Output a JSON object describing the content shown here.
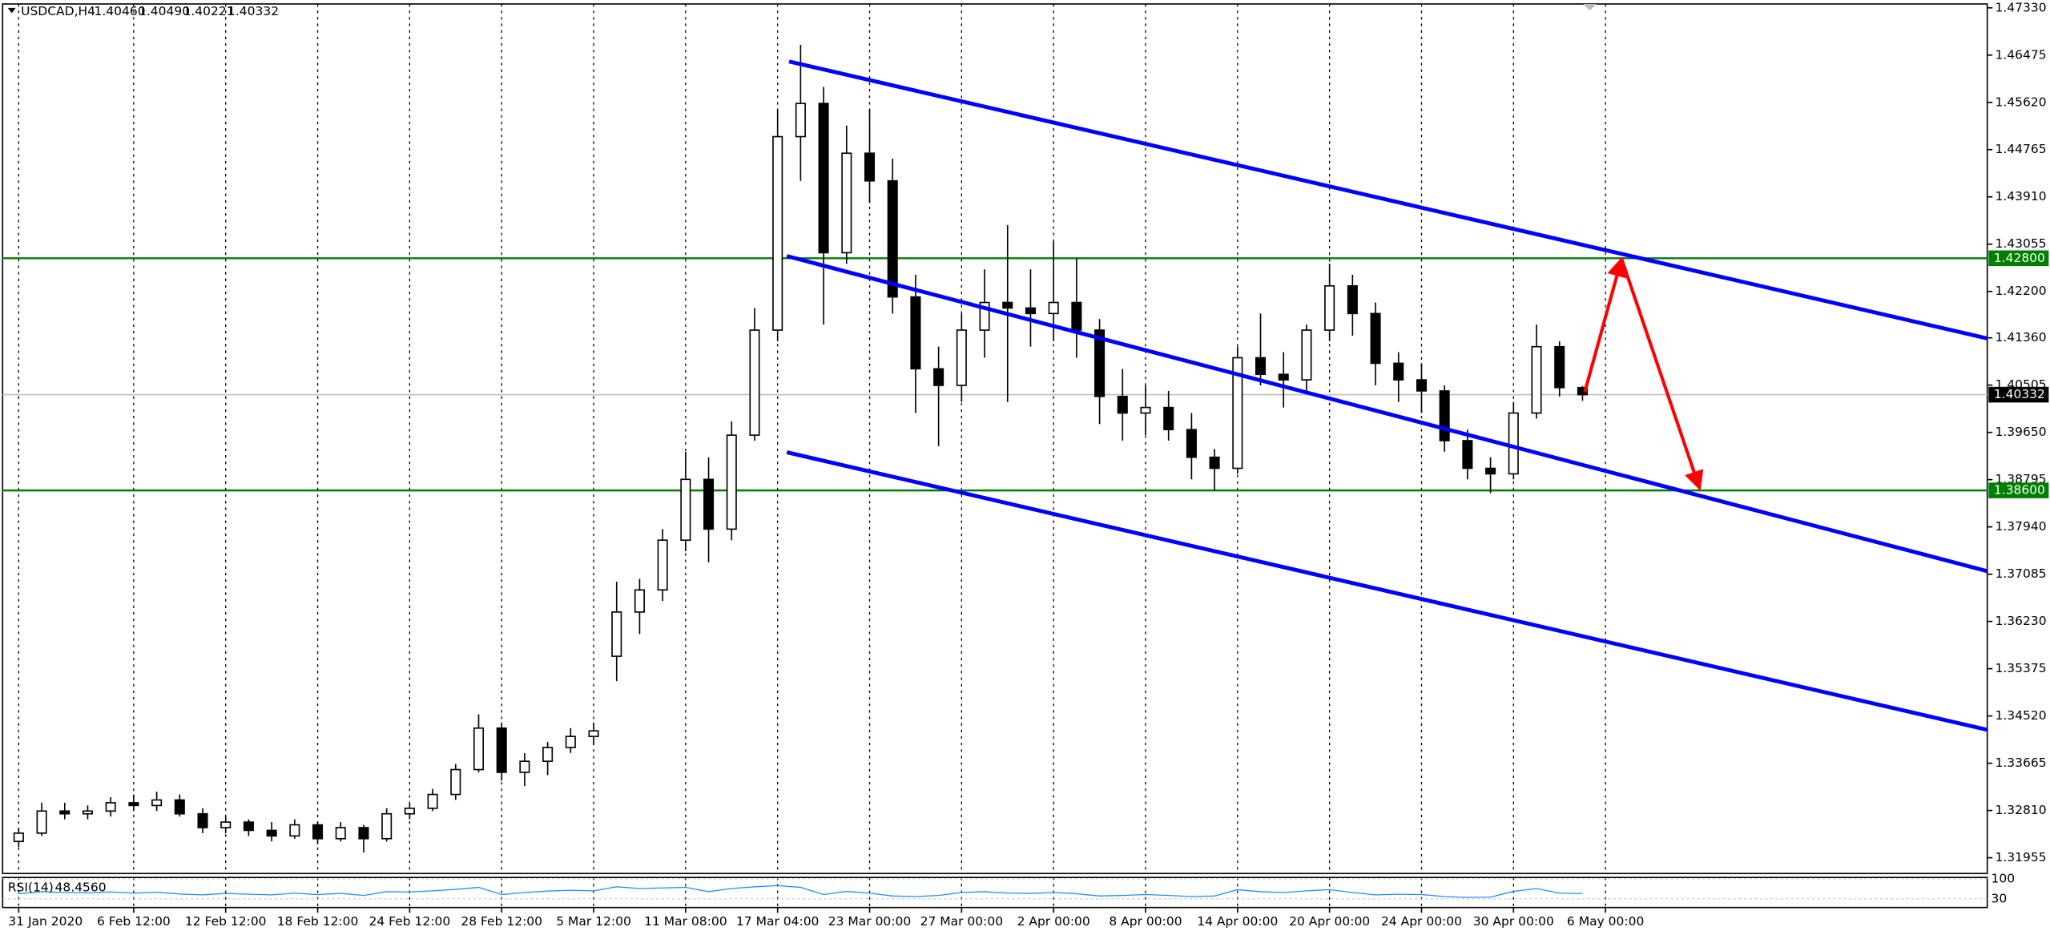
{
  "chart_data": {
    "type": "candlestick",
    "title": "USDCAD,H4",
    "quote": [
      {
        "value": 1.4046,
        "label": "1.40460"
      },
      {
        "value": 1.4049,
        "label": "1.40490"
      },
      {
        "value": 1.40221,
        "label": "1.40221"
      },
      {
        "value": 1.40332,
        "label": "1.40332"
      }
    ],
    "xlim": [
      -0.7,
      85.6
    ],
    "xticks": [
      {
        "value": 0,
        "label": "31 Jan 2020"
      },
      {
        "value": 5,
        "label": "6 Feb 12:00"
      },
      {
        "value": 9,
        "label": "12 Feb 12:00"
      },
      {
        "value": 13,
        "label": "18 Feb 12:00"
      },
      {
        "value": 17,
        "label": "24 Feb 12:00"
      },
      {
        "value": 21,
        "label": "28 Feb 12:00"
      },
      {
        "value": 25,
        "label": "5 Mar 12:00"
      },
      {
        "value": 29,
        "label": "11 Mar 08:00"
      },
      {
        "value": 33,
        "label": "17 Mar 04:00"
      },
      {
        "value": 37,
        "label": "23 Mar 00:00"
      },
      {
        "value": 41,
        "label": "27 Mar 00:00"
      },
      {
        "value": 45,
        "label": "2 Apr 00:00"
      },
      {
        "value": 49,
        "label": "8 Apr 00:00"
      },
      {
        "value": 53,
        "label": "14 Apr 00:00"
      },
      {
        "value": 57,
        "label": "20 Apr 00:00"
      },
      {
        "value": 61,
        "label": "24 Apr 00:00"
      },
      {
        "value": 65,
        "label": "30 Apr 00:00"
      },
      {
        "value": 69,
        "label": "6 May 00:00"
      }
    ],
    "ylim": [
      1.3167,
      1.474
    ],
    "yticks": [
      {
        "value": 1.4733,
        "label": "1.47330"
      },
      {
        "value": 1.46475,
        "label": "1.46475"
      },
      {
        "value": 1.4562,
        "label": "1.45620"
      },
      {
        "value": 1.44765,
        "label": "1.44765"
      },
      {
        "value": 1.4391,
        "label": "1.43910"
      },
      {
        "value": 1.43055,
        "label": "1.43055"
      },
      {
        "value": 1.422,
        "label": "1.42200"
      },
      {
        "value": 1.4136,
        "label": "1.41360"
      },
      {
        "value": 1.40505,
        "label": "1.40505"
      },
      {
        "value": 1.3965,
        "label": "1.39650"
      },
      {
        "value": 1.38795,
        "label": "1.38795"
      },
      {
        "value": 1.3794,
        "label": "1.37940"
      },
      {
        "value": 1.37085,
        "label": "1.37085"
      },
      {
        "value": 1.3623,
        "label": "1.36230"
      },
      {
        "value": 1.35375,
        "label": "1.35375"
      },
      {
        "value": 1.3452,
        "label": "1.34520"
      },
      {
        "value": 1.33665,
        "label": "1.33665"
      },
      {
        "value": 1.3281,
        "label": "1.32810"
      },
      {
        "value": 1.31955,
        "label": "1.31955"
      }
    ],
    "open": [
      1.3225,
      1.324,
      1.328,
      1.3275,
      1.328,
      1.3295,
      1.329,
      1.33,
      1.3275,
      1.325,
      1.326,
      1.3245,
      1.3235,
      1.3255,
      1.323,
      1.325,
      1.323,
      1.3275,
      1.3285,
      1.331,
      1.3355,
      1.343,
      1.335,
      1.337,
      1.3395,
      1.3415,
      1.356,
      1.364,
      1.368,
      1.377,
      1.388,
      1.379,
      1.396,
      1.415,
      1.45,
      1.456,
      1.429,
      1.447,
      1.442,
      1.421,
      1.408,
      1.405,
      1.415,
      1.42,
      1.419,
      1.418,
      1.42,
      1.415,
      1.403,
      1.4,
      1.401,
      1.397,
      1.392,
      1.39,
      1.41,
      1.407,
      1.406,
      1.415,
      1.423,
      1.418,
      1.409,
      1.406,
      1.404,
      1.395,
      1.39,
      1.389,
      1.4,
      1.412,
      1.4046
    ],
    "high": [
      1.325,
      1.3295,
      1.3295,
      1.329,
      1.3305,
      1.331,
      1.3315,
      1.331,
      1.3285,
      1.327,
      1.3265,
      1.326,
      1.3265,
      1.326,
      1.326,
      1.3255,
      1.3285,
      1.3295,
      1.332,
      1.3365,
      1.3455,
      1.344,
      1.3385,
      1.3405,
      1.343,
      1.344,
      1.3695,
      1.37,
      1.379,
      1.393,
      1.392,
      1.3985,
      1.419,
      1.455,
      1.4666,
      1.459,
      1.452,
      1.455,
      1.446,
      1.425,
      1.412,
      1.418,
      1.426,
      1.434,
      1.426,
      1.431,
      1.428,
      1.417,
      1.408,
      1.405,
      1.404,
      1.4,
      1.3935,
      1.412,
      1.418,
      1.411,
      1.416,
      1.427,
      1.425,
      1.42,
      1.411,
      1.409,
      1.405,
      1.397,
      1.392,
      1.402,
      1.416,
      1.413,
      1.4049
    ],
    "low": [
      1.3215,
      1.3235,
      1.3265,
      1.3265,
      1.327,
      1.328,
      1.328,
      1.327,
      1.324,
      1.324,
      1.3235,
      1.3225,
      1.323,
      1.322,
      1.3225,
      1.3205,
      1.3225,
      1.3265,
      1.328,
      1.33,
      1.335,
      1.3335,
      1.3325,
      1.3345,
      1.3385,
      1.34,
      1.3515,
      1.36,
      1.366,
      1.375,
      1.373,
      1.377,
      1.395,
      1.413,
      1.442,
      1.416,
      1.427,
      1.438,
      1.418,
      1.4,
      1.394,
      1.402,
      1.41,
      1.402,
      1.412,
      1.413,
      1.41,
      1.398,
      1.395,
      1.396,
      1.395,
      1.388,
      1.386,
      1.389,
      1.405,
      1.401,
      1.404,
      1.413,
      1.414,
      1.405,
      1.402,
      1.4,
      1.393,
      1.388,
      1.3855,
      1.388,
      1.399,
      1.403,
      1.40221
    ],
    "close": [
      1.324,
      1.328,
      1.3275,
      1.328,
      1.3295,
      1.329,
      1.33,
      1.3275,
      1.325,
      1.326,
      1.3245,
      1.3235,
      1.3255,
      1.323,
      1.325,
      1.323,
      1.3275,
      1.3285,
      1.331,
      1.3355,
      1.343,
      1.335,
      1.337,
      1.3395,
      1.3415,
      1.3425,
      1.364,
      1.368,
      1.377,
      1.388,
      1.379,
      1.396,
      1.415,
      1.45,
      1.456,
      1.429,
      1.447,
      1.442,
      1.421,
      1.408,
      1.405,
      1.415,
      1.42,
      1.419,
      1.418,
      1.42,
      1.415,
      1.403,
      1.4,
      1.401,
      1.397,
      1.392,
      1.39,
      1.41,
      1.407,
      1.406,
      1.415,
      1.423,
      1.418,
      1.409,
      1.406,
      1.404,
      1.395,
      1.39,
      1.389,
      1.4,
      1.412,
      1.4046,
      1.40332
    ],
    "levels": [
      {
        "value": 1.428,
        "label": "1.42800",
        "color": "#008000"
      },
      {
        "value": 1.386,
        "label": "1.38600",
        "color": "#008000"
      }
    ],
    "last_price": {
      "value": 1.40332,
      "label": "1.40332"
    },
    "trendlines": [
      {
        "color": "#0000ff",
        "x": [
          33.5,
          85.6
        ],
        "y": [
          1.4636,
          1.4135
        ]
      },
      {
        "color": "#0000ff",
        "x": [
          33.4,
          85.6
        ],
        "y": [
          1.4284,
          1.3714
        ]
      },
      {
        "color": "#0000ff",
        "x": [
          33.4,
          85.6
        ],
        "y": [
          1.3929,
          1.3427
        ]
      }
    ],
    "arrows": [
      {
        "color": "#ff0000",
        "x": [
          68.1,
          69.7
        ],
        "y": [
          1.4038,
          1.4279
        ]
      },
      {
        "color": "#ff0000",
        "x": [
          69.7,
          73.1
        ],
        "y": [
          1.4279,
          1.3863
        ]
      }
    ],
    "rsi": {
      "name": "RSI(14)",
      "value": 48.456,
      "value_label": "48.4560",
      "color": "#1e90ff",
      "ylim": [
        0,
        100
      ],
      "yticks": [
        100,
        30
      ],
      "values": [
        48,
        55,
        52,
        51,
        54,
        50,
        53,
        47,
        44,
        49,
        46,
        44,
        50,
        45,
        49,
        42,
        55,
        54,
        58,
        63,
        70,
        45,
        52,
        57,
        60,
        58,
        72,
        66,
        68,
        70,
        55,
        66,
        72,
        76,
        70,
        45,
        56,
        50,
        40,
        38,
        42,
        52,
        55,
        50,
        49,
        52,
        48,
        40,
        42,
        45,
        42,
        38,
        40,
        62,
        55,
        52,
        58,
        62,
        52,
        44,
        46,
        45,
        38,
        35,
        36,
        56,
        66,
        50,
        48.456
      ]
    }
  }
}
